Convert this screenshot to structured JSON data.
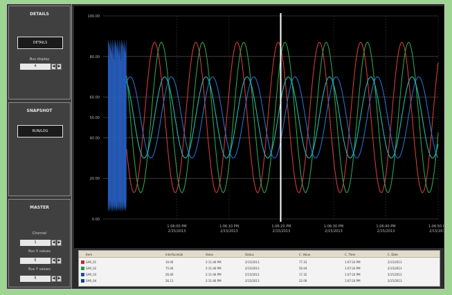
{
  "sidebar": {
    "details": {
      "title": "DETAILS",
      "button": "DETAILS",
      "stepper_label": "Bus display",
      "stepper_value": "4"
    },
    "snapshot": {
      "title": "SNAPSHOT",
      "button": "RUN/LOG"
    },
    "master": {
      "title": "MASTER",
      "fields": [
        {
          "label": "Channel",
          "value": "1"
        },
        {
          "label": "Bus X values",
          "value": "5"
        },
        {
          "label": "Bus Y values",
          "value": "5"
        }
      ]
    }
  },
  "chart_data": {
    "type": "line",
    "y_ticks": [
      "100.00",
      "80.00",
      "60.00",
      "50.00",
      "40.00",
      "20.00",
      "0.00"
    ],
    "x_ticks": [
      {
        "time": "1:06:00 PM",
        "date": "2/15/2013"
      },
      {
        "time": "1:06:10 PM",
        "date": "2/15/2013"
      },
      {
        "time": "1:06:20 PM",
        "date": "2/15/2013"
      },
      {
        "time": "1:06:30 PM",
        "date": "2/15/2013"
      },
      {
        "time": "1:06:40 PM",
        "date": "2/15/2013"
      },
      {
        "time": "1:06:50 PM",
        "date": "2/15/2013"
      }
    ],
    "grid": true,
    "cursor_x": 0.53,
    "series": [
      {
        "color": "#d23a3a",
        "amplitude": 0.37,
        "center": 0.5,
        "period": 0.123,
        "phase": 0.0
      },
      {
        "color": "#2fa34a",
        "amplitude": 0.37,
        "center": 0.5,
        "period": 0.123,
        "phase": 0.02
      },
      {
        "color": "#2a6fcf",
        "amplitude": 0.2,
        "center": 0.5,
        "period": 0.123,
        "phase": 0.05
      },
      {
        "color": "#27b8b8",
        "amplitude": 0.2,
        "center": 0.5,
        "period": 0.123,
        "phase": 0.03
      }
    ]
  },
  "legend": {
    "columns": [
      "Item",
      "Interface/Lbl",
      "Value",
      "Status",
      "C. Value",
      "C. Time",
      "C. Date"
    ],
    "rows": [
      {
        "color": "#c82a2a",
        "cells": [
          "SAR_01",
          "10.00",
          "2:11:46 PM",
          "2/15/2013",
          "77.33",
          "1:07:24 PM",
          "2/15/2013"
        ]
      },
      {
        "color": "#2a9a3f",
        "cells": [
          "SAR_02",
          "75.00",
          "2:11:46 PM",
          "2/15/2013",
          "56.04",
          "1:07:24 PM",
          "2/15/2013"
        ]
      },
      {
        "color": "#1f4ea8",
        "cells": [
          "SAR_03",
          "26.00",
          "2:11:46 PM",
          "2/15/2013",
          "17.32",
          "1:07:24 PM",
          "2/15/2013"
        ]
      },
      {
        "color": "#1b3f7e",
        "cells": [
          "SAR_04",
          "26.11",
          "2:11:46 PM",
          "2/15/2013",
          "22.09",
          "1:07:24 PM",
          "2/15/2013"
        ]
      }
    ]
  }
}
